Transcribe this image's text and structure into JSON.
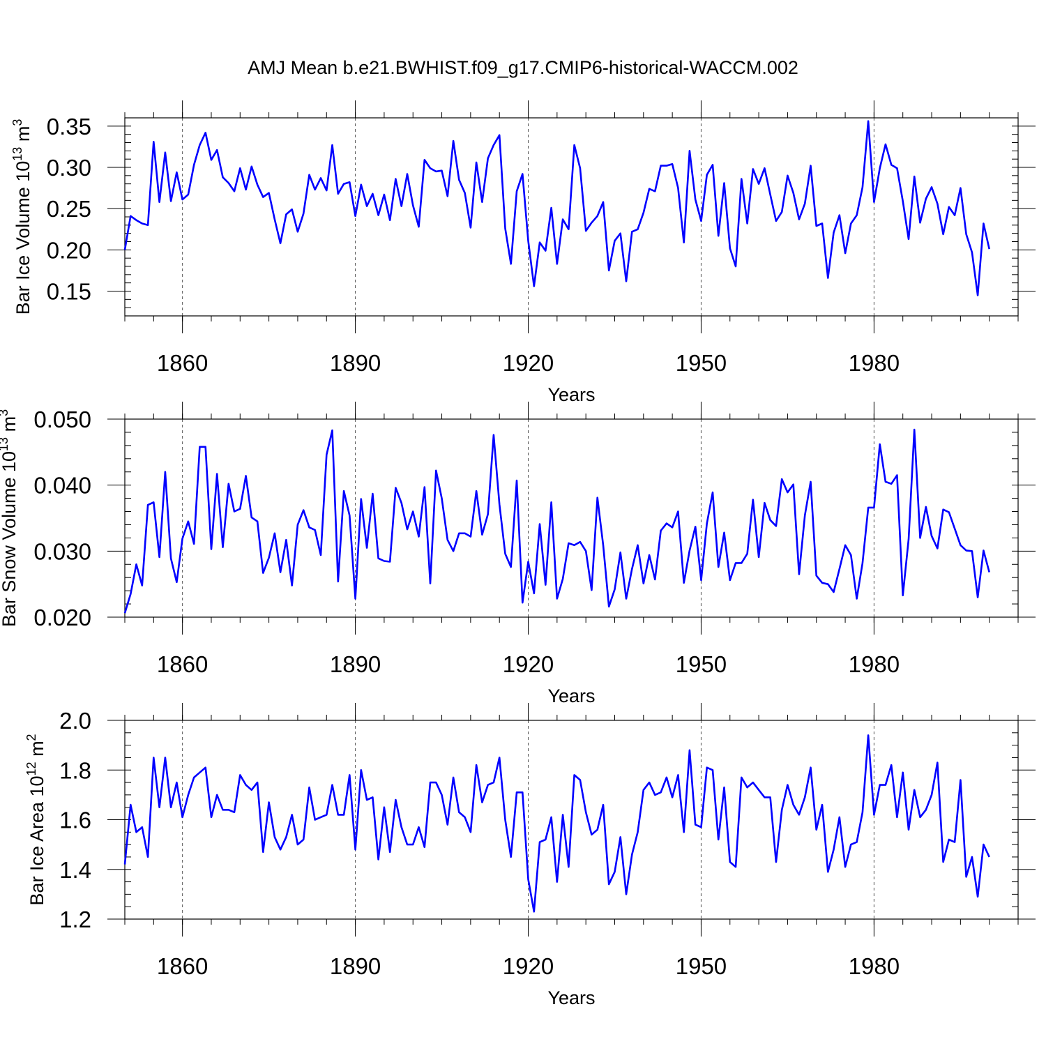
{
  "figure": {
    "title": "AMJ Mean b.e21.BWHIST.f09_g17.CMIP6-historical-WACCM.002"
  },
  "colors": {
    "line": "#0000ff",
    "axis": "#000000",
    "grid": "#555555"
  },
  "chart_data": [
    {
      "type": "line",
      "title": "",
      "ylabel_main": "Bar Ice Volume 10",
      "ylabel_exp": "13",
      "ylabel_unit": "m",
      "ylabel_unit_exp": "3",
      "xlabel": "Years",
      "xlim": [
        1850,
        2005
      ],
      "ylim": [
        0.12,
        0.36
      ],
      "xticks": [
        1860,
        1890,
        1920,
        1950,
        1980
      ],
      "yticks": [
        0.15,
        0.2,
        0.25,
        0.3,
        0.35
      ],
      "ytick_labels": [
        "0.15",
        "0.20",
        "0.25",
        "0.30",
        "0.35"
      ],
      "y_minor": 0.01,
      "grid_x": true,
      "series": [
        {
          "name": "Bar Ice Volume",
          "color": "#0000ff",
          "x_start": 1850,
          "values": [
            0.2,
            0.241,
            0.236,
            0.232,
            0.23,
            0.331,
            0.258,
            0.318,
            0.259,
            0.294,
            0.261,
            0.267,
            0.303,
            0.327,
            0.342,
            0.309,
            0.321,
            0.288,
            0.281,
            0.271,
            0.299,
            0.273,
            0.301,
            0.279,
            0.264,
            0.269,
            0.237,
            0.208,
            0.243,
            0.249,
            0.222,
            0.244,
            0.291,
            0.273,
            0.287,
            0.272,
            0.327,
            0.268,
            0.28,
            0.282,
            0.241,
            0.279,
            0.253,
            0.268,
            0.242,
            0.267,
            0.236,
            0.286,
            0.253,
            0.292,
            0.254,
            0.228,
            0.309,
            0.299,
            0.295,
            0.296,
            0.265,
            0.332,
            0.285,
            0.269,
            0.227,
            0.306,
            0.258,
            0.311,
            0.327,
            0.339,
            0.226,
            0.183,
            0.271,
            0.292,
            0.211,
            0.156,
            0.209,
            0.199,
            0.251,
            0.183,
            0.237,
            0.225,
            0.327,
            0.299,
            0.223,
            0.233,
            0.241,
            0.258,
            0.175,
            0.211,
            0.22,
            0.162,
            0.222,
            0.225,
            0.245,
            0.274,
            0.271,
            0.302,
            0.302,
            0.304,
            0.275,
            0.209,
            0.32,
            0.261,
            0.235,
            0.291,
            0.303,
            0.217,
            0.281,
            0.202,
            0.18,
            0.286,
            0.232,
            0.298,
            0.28,
            0.299,
            0.267,
            0.235,
            0.246,
            0.29,
            0.269,
            0.237,
            0.256,
            0.302,
            0.229,
            0.232,
            0.166,
            0.221,
            0.242,
            0.196,
            0.232,
            0.242,
            0.276,
            0.356,
            0.258,
            0.299,
            0.328,
            0.303,
            0.299,
            0.259,
            0.213,
            0.289,
            0.233,
            0.262,
            0.276,
            0.256,
            0.219,
            0.252,
            0.242,
            0.275,
            0.219,
            0.197,
            0.145,
            0.232,
            0.201
          ]
        }
      ]
    },
    {
      "type": "line",
      "title": "",
      "ylabel_main": "Bar Snow Volume 10",
      "ylabel_exp": "13",
      "ylabel_unit": "m",
      "ylabel_unit_exp": "3",
      "xlabel": "Years",
      "xlim": [
        1850,
        2005
      ],
      "ylim": [
        0.02,
        0.05
      ],
      "xticks": [
        1860,
        1890,
        1920,
        1950,
        1980
      ],
      "yticks": [
        0.02,
        0.03,
        0.04,
        0.05
      ],
      "ytick_labels": [
        "0.020",
        "0.030",
        "0.040",
        "0.050"
      ],
      "y_minor": 0.002,
      "grid_x": true,
      "series": [
        {
          "name": "Bar Snow Volume",
          "color": "#0000ff",
          "x_start": 1850,
          "values": [
            0.0206,
            0.0235,
            0.028,
            0.0248,
            0.037,
            0.0374,
            0.0291,
            0.042,
            0.0289,
            0.0253,
            0.0319,
            0.0345,
            0.0311,
            0.0458,
            0.0458,
            0.0303,
            0.0417,
            0.0306,
            0.0402,
            0.036,
            0.0364,
            0.0414,
            0.0351,
            0.0345,
            0.0267,
            0.029,
            0.0327,
            0.0268,
            0.0317,
            0.0248,
            0.034,
            0.0362,
            0.0336,
            0.0332,
            0.0294,
            0.0446,
            0.0483,
            0.0254,
            0.0391,
            0.0354,
            0.0228,
            0.0379,
            0.0305,
            0.0387,
            0.0289,
            0.0285,
            0.0284,
            0.0396,
            0.0373,
            0.0333,
            0.036,
            0.0322,
            0.0397,
            0.0251,
            0.0422,
            0.038,
            0.0317,
            0.03,
            0.0327,
            0.0327,
            0.0322,
            0.0391,
            0.0325,
            0.0356,
            0.0476,
            0.0371,
            0.0296,
            0.0276,
            0.0407,
            0.0222,
            0.0284,
            0.0236,
            0.0341,
            0.0249,
            0.0374,
            0.0228,
            0.0258,
            0.0312,
            0.0309,
            0.0314,
            0.03,
            0.0241,
            0.0381,
            0.0309,
            0.0216,
            0.0242,
            0.0298,
            0.0228,
            0.0273,
            0.0309,
            0.0251,
            0.0294,
            0.0257,
            0.0331,
            0.0342,
            0.0336,
            0.036,
            0.0252,
            0.0301,
            0.0337,
            0.0256,
            0.0342,
            0.0389,
            0.0276,
            0.0328,
            0.0256,
            0.0282,
            0.0282,
            0.0296,
            0.0378,
            0.0291,
            0.0373,
            0.0347,
            0.0338,
            0.0409,
            0.0389,
            0.0401,
            0.0265,
            0.0354,
            0.0405,
            0.0263,
            0.0252,
            0.025,
            0.0238,
            0.0273,
            0.0309,
            0.0294,
            0.0228,
            0.0282,
            0.0366,
            0.0366,
            0.0462,
            0.0405,
            0.0402,
            0.0415,
            0.0233,
            0.0318,
            0.0484,
            0.032,
            0.0367,
            0.0323,
            0.0304,
            0.0363,
            0.0359,
            0.0334,
            0.0309,
            0.0301,
            0.03,
            0.023,
            0.0301,
            0.0268
          ]
        }
      ]
    },
    {
      "type": "line",
      "title": "",
      "ylabel_main": "Bar Ice Area 10",
      "ylabel_exp": "12",
      "ylabel_unit": "m",
      "ylabel_unit_exp": "2",
      "xlabel": "Years",
      "xlim": [
        1850,
        2005
      ],
      "ylim": [
        1.2,
        2.0
      ],
      "xticks": [
        1860,
        1890,
        1920,
        1950,
        1980
      ],
      "yticks": [
        1.2,
        1.4,
        1.6,
        1.8,
        2.0
      ],
      "ytick_labels": [
        "1.2",
        "1.4",
        "1.6",
        "1.8",
        "2.0"
      ],
      "y_minor": 0.05,
      "grid_x": true,
      "series": [
        {
          "name": "Bar Ice Area",
          "color": "#0000ff",
          "x_start": 1850,
          "values": [
            1.42,
            1.66,
            1.55,
            1.57,
            1.45,
            1.85,
            1.65,
            1.85,
            1.65,
            1.75,
            1.61,
            1.7,
            1.77,
            1.79,
            1.81,
            1.61,
            1.7,
            1.64,
            1.64,
            1.63,
            1.78,
            1.74,
            1.72,
            1.75,
            1.47,
            1.67,
            1.53,
            1.48,
            1.53,
            1.62,
            1.5,
            1.52,
            1.73,
            1.6,
            1.61,
            1.62,
            1.74,
            1.62,
            1.62,
            1.78,
            1.48,
            1.8,
            1.68,
            1.69,
            1.44,
            1.65,
            1.47,
            1.68,
            1.57,
            1.5,
            1.5,
            1.57,
            1.49,
            1.75,
            1.75,
            1.7,
            1.58,
            1.77,
            1.63,
            1.61,
            1.55,
            1.82,
            1.67,
            1.74,
            1.75,
            1.85,
            1.6,
            1.45,
            1.71,
            1.71,
            1.36,
            1.23,
            1.51,
            1.52,
            1.61,
            1.35,
            1.62,
            1.41,
            1.78,
            1.76,
            1.63,
            1.54,
            1.56,
            1.66,
            1.34,
            1.39,
            1.53,
            1.3,
            1.46,
            1.55,
            1.72,
            1.75,
            1.7,
            1.71,
            1.77,
            1.69,
            1.78,
            1.55,
            1.88,
            1.58,
            1.57,
            1.81,
            1.8,
            1.52,
            1.73,
            1.43,
            1.41,
            1.77,
            1.73,
            1.75,
            1.72,
            1.69,
            1.69,
            1.43,
            1.64,
            1.74,
            1.66,
            1.62,
            1.69,
            1.81,
            1.56,
            1.66,
            1.39,
            1.48,
            1.61,
            1.41,
            1.5,
            1.51,
            1.63,
            1.94,
            1.62,
            1.74,
            1.74,
            1.82,
            1.61,
            1.79,
            1.56,
            1.72,
            1.61,
            1.64,
            1.7,
            1.83,
            1.43,
            1.52,
            1.51,
            1.76,
            1.37,
            1.45,
            1.29,
            1.5,
            1.45
          ]
        }
      ]
    }
  ]
}
